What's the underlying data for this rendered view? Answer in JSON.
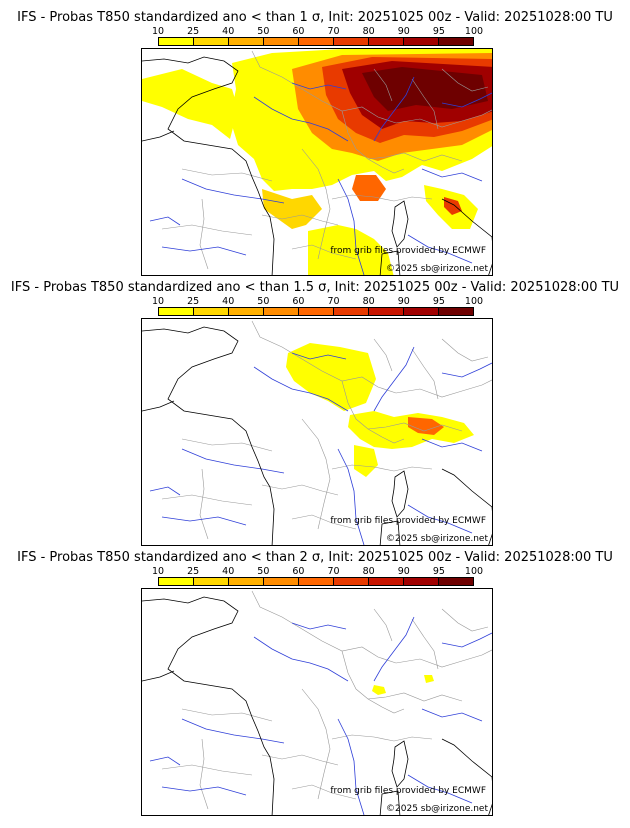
{
  "colorbar": {
    "ticks": [
      "10",
      "25",
      "40",
      "50",
      "60",
      "70",
      "80",
      "90",
      "95",
      "100"
    ],
    "colors": [
      "#ffff00",
      "#ffd700",
      "#ffb000",
      "#ff8c00",
      "#ff6600",
      "#e83a00",
      "#c81400",
      "#a00000",
      "#6e0000"
    ]
  },
  "panels": [
    {
      "title": "IFS - Probas T850  standardized ano < than 1 σ, Init: 20251025 00z - Valid: 20251028:00 TU"
    },
    {
      "title": "IFS - Probas T850  standardized ano < than 1.5 σ, Init: 20251025 00z - Valid: 20251028:00 TU"
    },
    {
      "title": "IFS - Probas T850  standardized ano < than 2 σ, Init: 20251025 00z - Valid: 20251028:00 TU"
    }
  ],
  "credits": {
    "source": "from grib files provided by ECMWF",
    "copyright": "©2025 sb@irizone.net"
  },
  "colors": {
    "land_border": "#999999",
    "river": "#2f3fd8",
    "coast": "#000000"
  }
}
